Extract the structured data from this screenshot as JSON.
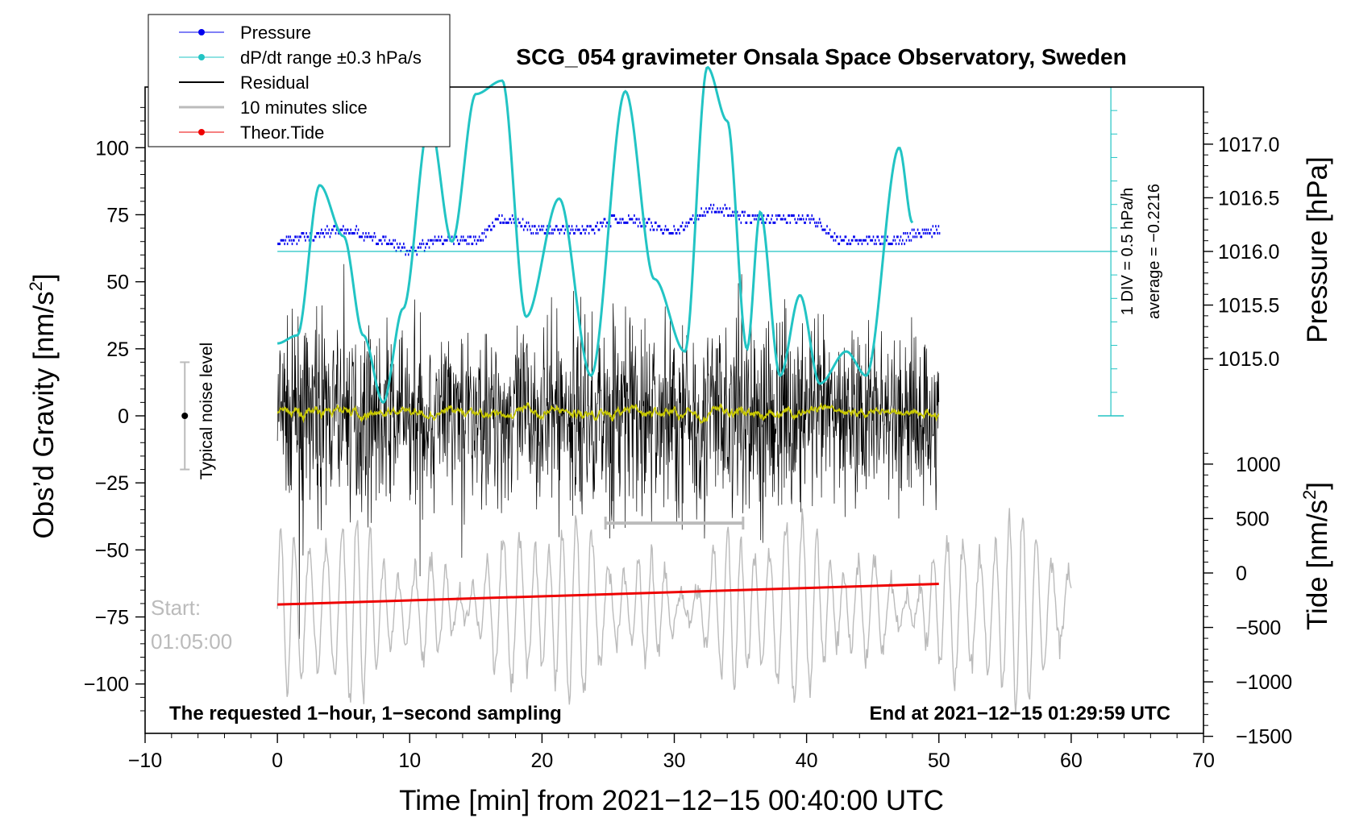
{
  "chart_data": {
    "type": "line",
    "title": "SCG_054 gravimeter Onsala Space Observatory, Sweden",
    "xlabel": "Time [min] from 2021−12−15 00:40:00 UTC",
    "ylabel_left": "Obs’d Gravity [nm/s",
    "ylabel_left_sup": "2",
    "ylabel_left_end": "]",
    "ylabel_right_pressure": "Pressure [hPa]",
    "ylabel_right_tide": "Tide [nm/s",
    "ylabel_right_tide_sup": "2",
    "ylabel_right_tide_end": "]",
    "xlim": [
      -10,
      70
    ],
    "ylim_gravity": [
      -120,
      120
    ],
    "ylim_pressure": [
      1014.7,
      1017.4
    ],
    "ylim_tide": [
      -1500,
      1200
    ],
    "x_ticks": [
      "−10",
      "0",
      "10",
      "20",
      "30",
      "40",
      "50",
      "60",
      "70"
    ],
    "x_tick_values": [
      -10,
      0,
      10,
      20,
      30,
      40,
      50,
      60,
      70
    ],
    "gravity_ticks": [
      "100",
      "75",
      "50",
      "25",
      "0",
      "−25",
      "−50",
      "−75",
      "−100"
    ],
    "gravity_tick_values": [
      100,
      75,
      50,
      25,
      0,
      -25,
      -50,
      -75,
      -100
    ],
    "pressure_ticks": [
      "1017.0",
      "1016.5",
      "1016.0",
      "1015.5",
      "1015.0"
    ],
    "pressure_tick_values": [
      1017.0,
      1016.5,
      1016.0,
      1015.5,
      1015.0
    ],
    "tide_ticks": [
      "1000",
      "500",
      "0",
      "−500",
      "−1000",
      "−1500"
    ],
    "tide_tick_values": [
      1000,
      500,
      0,
      -500,
      -1000,
      -1500
    ],
    "legend": [
      "Pressure",
      "dP/dt range ±0.3 hPa/s",
      "Residual",
      "10 minutes slice",
      "Theor.Tide"
    ],
    "legend_position": "top-left",
    "annotations": {
      "div": "1 DIV = 0.5 hPa/h",
      "average": "average = −0.2216",
      "noise": "Typical noise level",
      "start_label": "Start:",
      "start_time": "01:05:00",
      "bottom_left": "The requested 1−hour, 1−second sampling",
      "bottom_right": "End at 2021−12−15 01:29:59 UTC"
    },
    "colors": {
      "pressure": "#0000ee",
      "dpdt": "#22c4c4",
      "residual": "#000000",
      "slice": "#bbbbbb",
      "tide": "#ee0000",
      "smoothed": "#c8c800"
    },
    "slice_marker_min": [
      24.8,
      35.2
    ],
    "noise_bar_x_min": -7,
    "noise_bar_range": [
      -20,
      20
    ],
    "pressure_reference_line_hpa": 1016.0,
    "series": [
      {
        "name": "Pressure",
        "x_min": [
          0,
          5,
          8,
          10,
          12,
          15,
          17,
          20,
          23,
          26,
          30,
          33,
          36,
          40,
          43,
          46,
          50
        ],
        "values_hpa": [
          1016.1,
          1016.2,
          1016.1,
          1016.0,
          1016.1,
          1016.1,
          1016.3,
          1016.2,
          1016.2,
          1016.3,
          1016.2,
          1016.4,
          1016.3,
          1016.3,
          1016.1,
          1016.1,
          1016.2
        ]
      },
      {
        "name": "dP/dt range ±0.3 hPa/s",
        "x_min": [
          0,
          1.5,
          3.2,
          5,
          6.5,
          8,
          9.5,
          11.5,
          13.2,
          15,
          17,
          18.8,
          21.3,
          23.7,
          26.3,
          28.5,
          30.8,
          32.5,
          34,
          35.5,
          36.5,
          38,
          39.5,
          41,
          43,
          44.5,
          47,
          48
        ],
        "values_nm_s2": [
          27,
          30,
          86,
          67,
          30,
          5,
          40,
          110,
          65,
          120,
          125,
          37,
          81,
          15,
          121,
          51,
          24,
          130,
          110,
          25,
          76,
          15,
          45,
          12,
          24,
          15,
          100,
          72
        ]
      },
      {
        "name": "Residual",
        "x_range_min": [
          0,
          50
        ],
        "values_nm_s2": "1-second samples, mostly within ±20, peaks to about ±50"
      },
      {
        "name": "10 minutes slice",
        "x_range_min": [
          0,
          60
        ],
        "values_nm_s2": "oscillating trace, roughly −95 to −45"
      },
      {
        "name": "Theor.Tide",
        "x_min": [
          0,
          50
        ],
        "values_nm_s2": [
          -290,
          -100
        ]
      }
    ]
  }
}
